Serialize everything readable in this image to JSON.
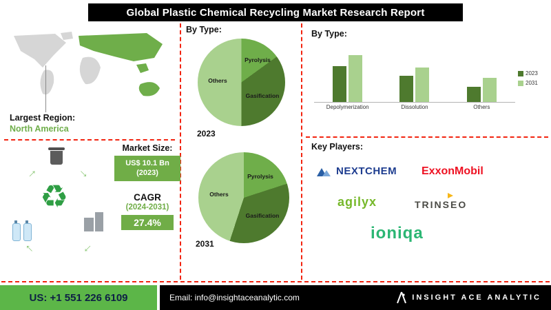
{
  "title": "Global Plastic Chemical Recycling Market Research Report",
  "region": {
    "label": "Largest Region:",
    "value": "North America"
  },
  "market": {
    "size_label": "Market Size:",
    "size_value_line1": "US$ 10.1 Bn",
    "size_value_line2": "(2023)",
    "cagr_label": "CAGR",
    "cagr_period": "(2024-2031)",
    "cagr_value": "27.4%"
  },
  "mid": {
    "header": "By Type:"
  },
  "right": {
    "header": "By  Type:",
    "key_players_label": "Key Players:",
    "players": [
      "NEXTCHEM",
      "ExxonMobil",
      "agilyx",
      "TRINSEO",
      "ioniqa"
    ]
  },
  "footer": {
    "phone": "US: +1 551 226 6109",
    "email": "Email: info@insightaceanalytic.com",
    "brand": "INSIGHT ACE ANALYTIC"
  },
  "colors": {
    "accent_green": "#6fae4a",
    "badge_green": "#70ad47",
    "divider_red": "#f2230f",
    "dark_green": "#4e7a2e",
    "mid_green": "#6fae4a",
    "light_green": "#a9d18e"
  },
  "chart_data": [
    {
      "type": "pie",
      "title": "2023",
      "segments": [
        {
          "label": "Pyrolysis",
          "value": 15,
          "color": "#6fae4a"
        },
        {
          "label": "Gasification",
          "value": 35,
          "color": "#4e7a2e"
        },
        {
          "label": "Others",
          "value": 50,
          "color": "#a9d18e"
        }
      ]
    },
    {
      "type": "pie",
      "title": "2031",
      "segments": [
        {
          "label": "Pyrolysis",
          "value": 20,
          "color": "#6fae4a"
        },
        {
          "label": "Gasification",
          "value": 35,
          "color": "#4e7a2e"
        },
        {
          "label": "Others",
          "value": 45,
          "color": "#a9d18e"
        }
      ]
    },
    {
      "type": "bar",
      "title": "By Type",
      "categories": [
        "Depolymerization",
        "Dissolution",
        "Others"
      ],
      "series": [
        {
          "name": "2023",
          "color": "#4e7a2e",
          "values": [
            58,
            42,
            24
          ]
        },
        {
          "name": "2031",
          "color": "#a9d18e",
          "values": [
            76,
            56,
            39
          ]
        }
      ],
      "ylim": [
        0,
        100
      ],
      "grid": false,
      "legend_position": "right"
    }
  ]
}
